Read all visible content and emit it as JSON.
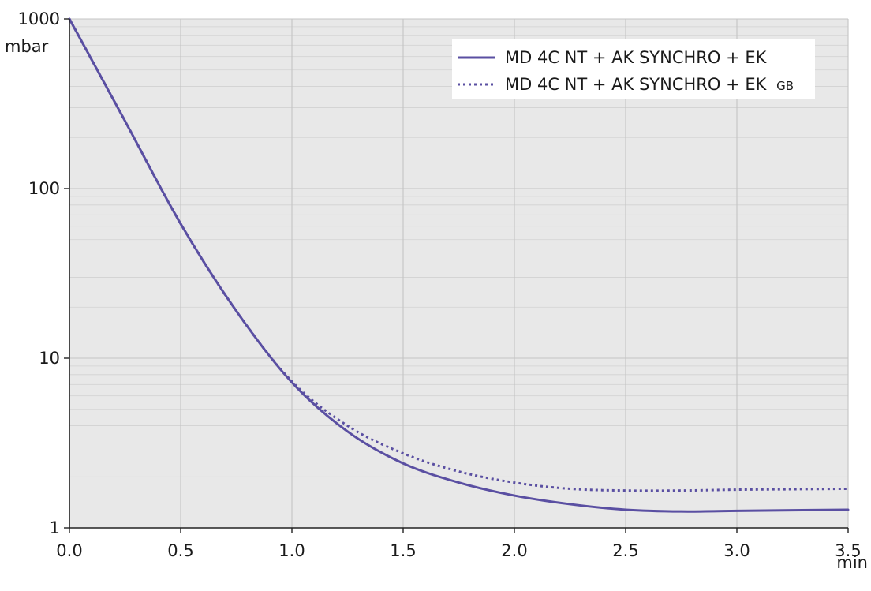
{
  "chart_data": {
    "type": "line",
    "x_scale": "linear",
    "y_scale": "log",
    "xlim": [
      0,
      3.5
    ],
    "ylim": [
      1,
      1000
    ],
    "x_ticks": [
      "0.0",
      "0.5",
      "1.0",
      "1.5",
      "2.0",
      "2.5",
      "3.0",
      "3.5"
    ],
    "y_ticks": [
      "1",
      "10",
      "100",
      "1000"
    ],
    "xlabel": "min",
    "ylabel": "mbar",
    "grid": true,
    "legend_position": "top-right",
    "plot_background": "#e8e8e8",
    "line_color": "#5a4fa2",
    "series": [
      {
        "name": "MD 4C NT + AK SYNCHRO + EK",
        "name_subscript": "",
        "style": "solid",
        "x": [
          0.0,
          0.25,
          0.5,
          0.75,
          1.0,
          1.25,
          1.5,
          1.75,
          2.0,
          2.25,
          2.5,
          2.75,
          3.0,
          3.25,
          3.5
        ],
        "y": [
          1000,
          250,
          62,
          19,
          7.2,
          3.7,
          2.4,
          1.85,
          1.55,
          1.38,
          1.28,
          1.25,
          1.26,
          1.27,
          1.28
        ]
      },
      {
        "name": "MD 4C NT + AK SYNCHRO + EK",
        "name_subscript": "GB",
        "style": "dotted",
        "x": [
          0.0,
          0.25,
          0.5,
          0.75,
          1.0,
          1.25,
          1.5,
          1.75,
          2.0,
          2.25,
          2.5,
          2.75,
          3.0,
          3.25,
          3.5
        ],
        "y": [
          1000,
          250,
          62,
          19,
          7.3,
          4.0,
          2.75,
          2.15,
          1.85,
          1.7,
          1.66,
          1.66,
          1.68,
          1.69,
          1.7
        ]
      }
    ]
  }
}
